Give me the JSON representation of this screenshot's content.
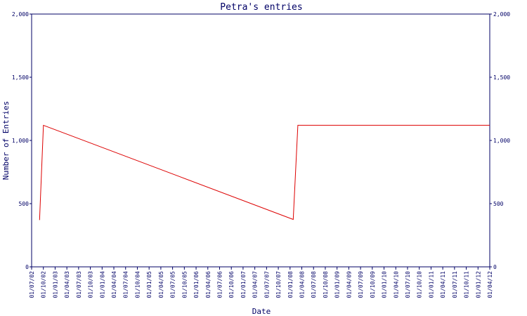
{
  "chart_data": {
    "type": "line",
    "title": "Petra's entries",
    "xlabel": "Date",
    "ylabel": "Number of Entries",
    "ylim": [
      0,
      2000
    ],
    "y_ticks": [
      "0",
      "500",
      "1,000",
      "1,500",
      "2,000"
    ],
    "y_tick_values": [
      0,
      500,
      1000,
      1500,
      2000
    ],
    "x_ticks": [
      "01/07/02",
      "01/10/02",
      "01/01/03",
      "01/04/03",
      "01/07/03",
      "01/10/03",
      "01/01/04",
      "01/04/04",
      "01/07/04",
      "01/10/04",
      "01/01/05",
      "01/04/05",
      "01/07/05",
      "01/10/05",
      "01/01/06",
      "01/04/06",
      "01/07/06",
      "01/10/06",
      "01/01/07",
      "01/04/07",
      "01/07/07",
      "01/10/07",
      "01/01/08",
      "01/04/08",
      "01/07/08",
      "01/10/08",
      "01/01/09",
      "01/04/09",
      "01/07/09",
      "01/10/09",
      "01/01/10",
      "01/04/10",
      "01/07/10",
      "01/10/10",
      "01/01/11",
      "01/04/11",
      "01/07/11",
      "01/10/11",
      "01/01/12",
      "01/04/12"
    ],
    "grid": false,
    "right_axis": true,
    "color": "#dd0000",
    "axis_color": "#000066",
    "series": [
      {
        "x": [
          "2002-09-01",
          "2002-10-01",
          "2008-01-25",
          "2008-03-01",
          "2012-04-01"
        ],
        "y": [
          370,
          1120,
          375,
          1120,
          1120
        ]
      }
    ]
  }
}
